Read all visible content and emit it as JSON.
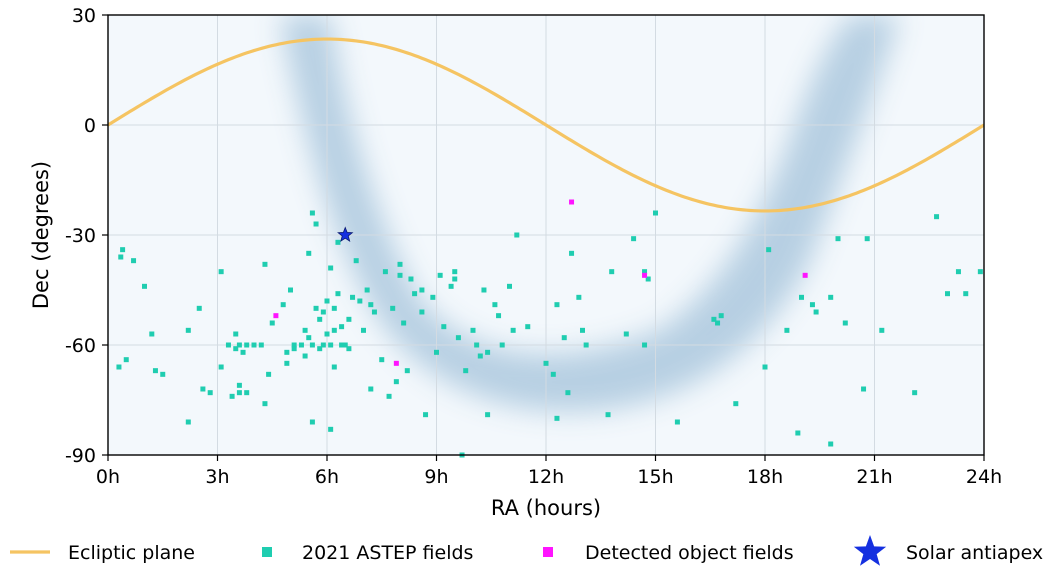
{
  "chart_data": {
    "type": "scatter",
    "title": "",
    "xlabel": "RA (hours)",
    "ylabel": "Dec (degrees)",
    "xlim": [
      0,
      24
    ],
    "ylim": [
      -90,
      30
    ],
    "x_ticks": [
      "0h",
      "3h",
      "6h",
      "9h",
      "12h",
      "15h",
      "18h",
      "21h",
      "24h"
    ],
    "y_ticks": [
      "30",
      "0",
      "-30",
      "-60",
      "-90"
    ],
    "grid": true,
    "legend_position": "bottom",
    "colors": {
      "ecliptic": "#f5c462",
      "astep": "#1fcdb0",
      "detected": "#ff14ff",
      "antiapex": "#1530e0",
      "milky_way": "#6e9fc4"
    },
    "series": [
      {
        "name": "Ecliptic plane",
        "kind": "line",
        "amplitude": 23.44
      },
      {
        "name": "2021 ASTEP fields",
        "kind": "points",
        "points": [
          [
            0.3,
            -66
          ],
          [
            0.4,
            -34
          ],
          [
            0.35,
            -36
          ],
          [
            0.5,
            -64
          ],
          [
            0.7,
            -37
          ],
          [
            1.0,
            -44
          ],
          [
            1.2,
            -57
          ],
          [
            1.3,
            -67
          ],
          [
            1.5,
            -68
          ],
          [
            2.2,
            -56
          ],
          [
            2.2,
            -81
          ],
          [
            2.5,
            -50
          ],
          [
            2.6,
            -72
          ],
          [
            2.8,
            -73
          ],
          [
            3.1,
            -40
          ],
          [
            3.1,
            -66
          ],
          [
            3.3,
            -60
          ],
          [
            3.4,
            -74
          ],
          [
            3.5,
            -57
          ],
          [
            3.5,
            -61
          ],
          [
            3.6,
            -73
          ],
          [
            3.6,
            -60
          ],
          [
            3.6,
            -71
          ],
          [
            3.7,
            -62
          ],
          [
            3.8,
            -60
          ],
          [
            3.8,
            -73
          ],
          [
            4.0,
            -60
          ],
          [
            4.2,
            -60
          ],
          [
            4.3,
            -38
          ],
          [
            4.3,
            -76
          ],
          [
            4.4,
            -68
          ],
          [
            4.5,
            -54
          ],
          [
            4.8,
            -49
          ],
          [
            4.9,
            -62
          ],
          [
            4.9,
            -65
          ],
          [
            5.0,
            -45
          ],
          [
            5.1,
            -60
          ],
          [
            5.1,
            -61
          ],
          [
            5.3,
            -60
          ],
          [
            5.4,
            -56
          ],
          [
            5.4,
            -63
          ],
          [
            5.5,
            -58
          ],
          [
            5.5,
            -35
          ],
          [
            5.6,
            -60
          ],
          [
            5.6,
            -81
          ],
          [
            5.6,
            -24
          ],
          [
            5.7,
            -27
          ],
          [
            5.7,
            -50
          ],
          [
            5.8,
            -53
          ],
          [
            5.8,
            -61
          ],
          [
            5.9,
            -51
          ],
          [
            5.9,
            -60
          ],
          [
            6.0,
            -48
          ],
          [
            6.0,
            -57
          ],
          [
            6.1,
            -83
          ],
          [
            6.1,
            -60
          ],
          [
            6.1,
            -39
          ],
          [
            6.2,
            -50
          ],
          [
            6.2,
            -56
          ],
          [
            6.2,
            -66
          ],
          [
            6.3,
            -46
          ],
          [
            6.3,
            -32
          ],
          [
            6.4,
            -55
          ],
          [
            6.4,
            -60
          ],
          [
            6.5,
            -60
          ],
          [
            6.6,
            -53
          ],
          [
            6.6,
            -61
          ],
          [
            6.7,
            -47
          ],
          [
            6.8,
            -37
          ],
          [
            6.9,
            -48
          ],
          [
            7.0,
            -56
          ],
          [
            7.1,
            -45
          ],
          [
            7.2,
            -49
          ],
          [
            7.2,
            -72
          ],
          [
            7.3,
            -51
          ],
          [
            7.5,
            -64
          ],
          [
            7.6,
            -40
          ],
          [
            7.7,
            -74
          ],
          [
            7.8,
            -50
          ],
          [
            7.9,
            -70
          ],
          [
            8.0,
            -38
          ],
          [
            8.0,
            -41
          ],
          [
            8.1,
            -54
          ],
          [
            8.2,
            -67
          ],
          [
            8.3,
            -42
          ],
          [
            8.4,
            -46
          ],
          [
            8.6,
            -51
          ],
          [
            8.6,
            -45
          ],
          [
            8.7,
            -79
          ],
          [
            8.9,
            -47
          ],
          [
            9.0,
            -62
          ],
          [
            9.1,
            -41
          ],
          [
            9.2,
            -55
          ],
          [
            9.4,
            -44
          ],
          [
            9.5,
            -40
          ],
          [
            9.5,
            -42
          ],
          [
            9.6,
            -58
          ],
          [
            9.7,
            -90
          ],
          [
            9.8,
            -67
          ],
          [
            10.0,
            -56
          ],
          [
            10.1,
            -60
          ],
          [
            10.2,
            -63
          ],
          [
            10.3,
            -45
          ],
          [
            10.4,
            -79
          ],
          [
            10.4,
            -62
          ],
          [
            10.6,
            -49
          ],
          [
            10.7,
            -52
          ],
          [
            10.8,
            -60
          ],
          [
            11.0,
            -44
          ],
          [
            11.1,
            -56
          ],
          [
            11.2,
            -30
          ],
          [
            11.5,
            -55
          ],
          [
            12.0,
            -65
          ],
          [
            12.2,
            -68
          ],
          [
            12.3,
            -49
          ],
          [
            12.3,
            -80
          ],
          [
            12.5,
            -58
          ],
          [
            12.6,
            -73
          ],
          [
            12.7,
            -35
          ],
          [
            12.9,
            -47
          ],
          [
            13.0,
            -56
          ],
          [
            13.1,
            -60
          ],
          [
            13.7,
            -79
          ],
          [
            13.8,
            -40
          ],
          [
            14.2,
            -57
          ],
          [
            14.4,
            -31
          ],
          [
            14.7,
            -40
          ],
          [
            14.7,
            -60
          ],
          [
            14.8,
            -42
          ],
          [
            15.0,
            -24
          ],
          [
            15.6,
            -81
          ],
          [
            16.6,
            -53
          ],
          [
            16.7,
            -54
          ],
          [
            16.8,
            -52
          ],
          [
            17.2,
            -76
          ],
          [
            18.0,
            -66
          ],
          [
            18.1,
            -34
          ],
          [
            18.6,
            -56
          ],
          [
            18.9,
            -84
          ],
          [
            19.0,
            -47
          ],
          [
            19.3,
            -49
          ],
          [
            19.4,
            -51
          ],
          [
            19.8,
            -47
          ],
          [
            19.8,
            -87
          ],
          [
            20.0,
            -31
          ],
          [
            20.2,
            -54
          ],
          [
            20.7,
            -72
          ],
          [
            20.8,
            -31
          ],
          [
            21.2,
            -56
          ],
          [
            22.1,
            -73
          ],
          [
            22.7,
            -25
          ],
          [
            23.0,
            -46
          ],
          [
            23.3,
            -40
          ],
          [
            23.5,
            -46
          ],
          [
            23.9,
            -40
          ]
        ]
      },
      {
        "name": "Detected object fields",
        "kind": "points",
        "points": [
          [
            4.6,
            -52
          ],
          [
            7.9,
            -65
          ],
          [
            12.7,
            -21
          ],
          [
            14.7,
            -41
          ],
          [
            19.1,
            -41
          ]
        ]
      },
      {
        "name": "Solar antiapex",
        "kind": "marker",
        "points": [
          [
            6.5,
            -30
          ]
        ]
      }
    ]
  }
}
